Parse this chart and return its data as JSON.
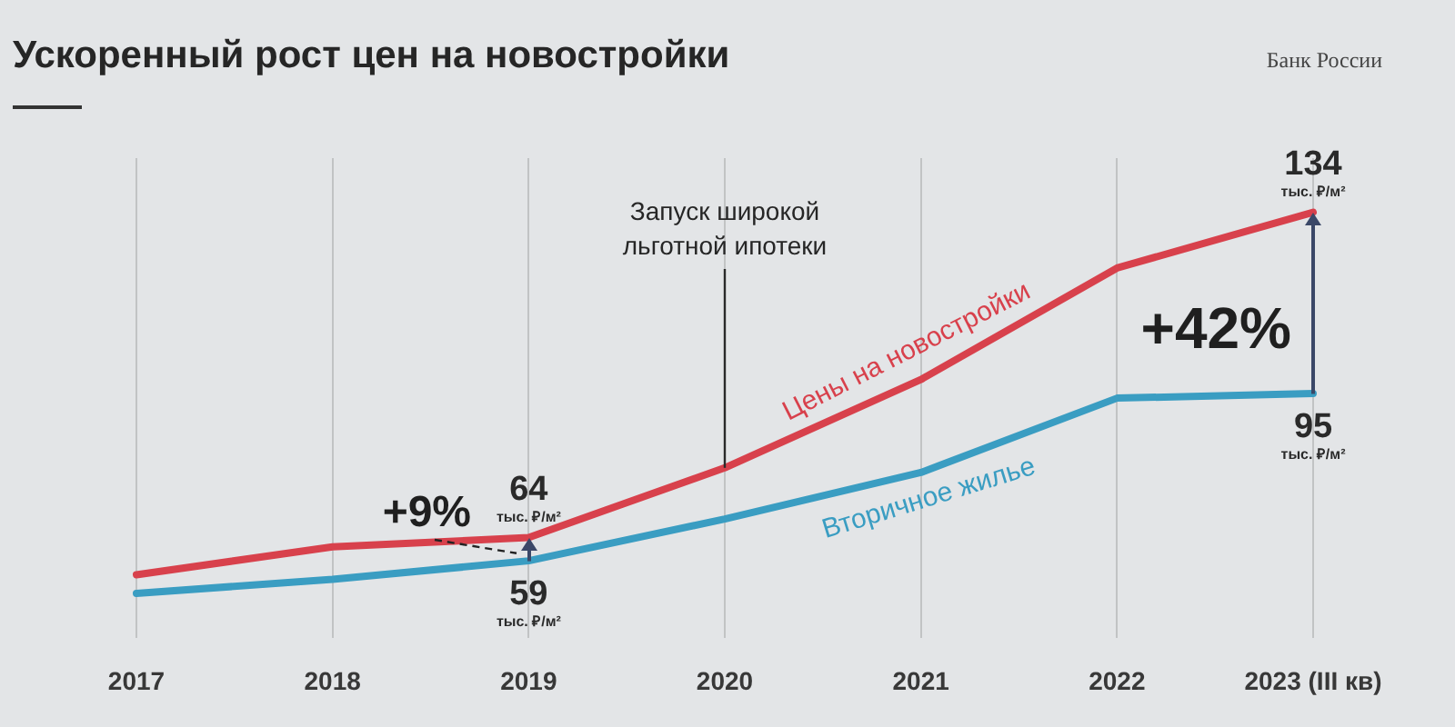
{
  "chart_data": {
    "type": "line",
    "title": "Ускоренный рост цен на новостройки",
    "categories": [
      "2017",
      "2018",
      "2019",
      "2020",
      "2021",
      "2022",
      "2023 (III кв)"
    ],
    "series": [
      {
        "name": "Цены на новостройки",
        "color": "#d8414c",
        "values": [
          56,
          62,
          64,
          79,
          98,
          122,
          134
        ],
        "value_labels": [
          null,
          null,
          "64\nтыс. ₽/м²",
          null,
          null,
          null,
          "134\nтыс. ₽/м²"
        ]
      },
      {
        "name": "Вторичное жилье",
        "color": "#3a9dc2",
        "values": [
          52,
          55,
          59,
          68,
          78,
          94,
          95
        ],
        "value_labels": [
          null,
          null,
          "59\nтыс. ₽/м²",
          null,
          null,
          null,
          "95\nтыс. ₽/м²"
        ]
      }
    ],
    "grid": "x",
    "tick_labels": "x",
    "marker": "none",
    "ref_lines": [
      {
        "axis": "x",
        "value": "2020",
        "label": "Запуск широкой льготной ипотеки"
      }
    ],
    "annotations": [
      "Банк России",
      {
        "text": "+9%",
        "x": "2019",
        "y": 64
      },
      {
        "text": "+42%",
        "x": "2023 (III кв)",
        "y": 134
      }
    ]
  }
}
